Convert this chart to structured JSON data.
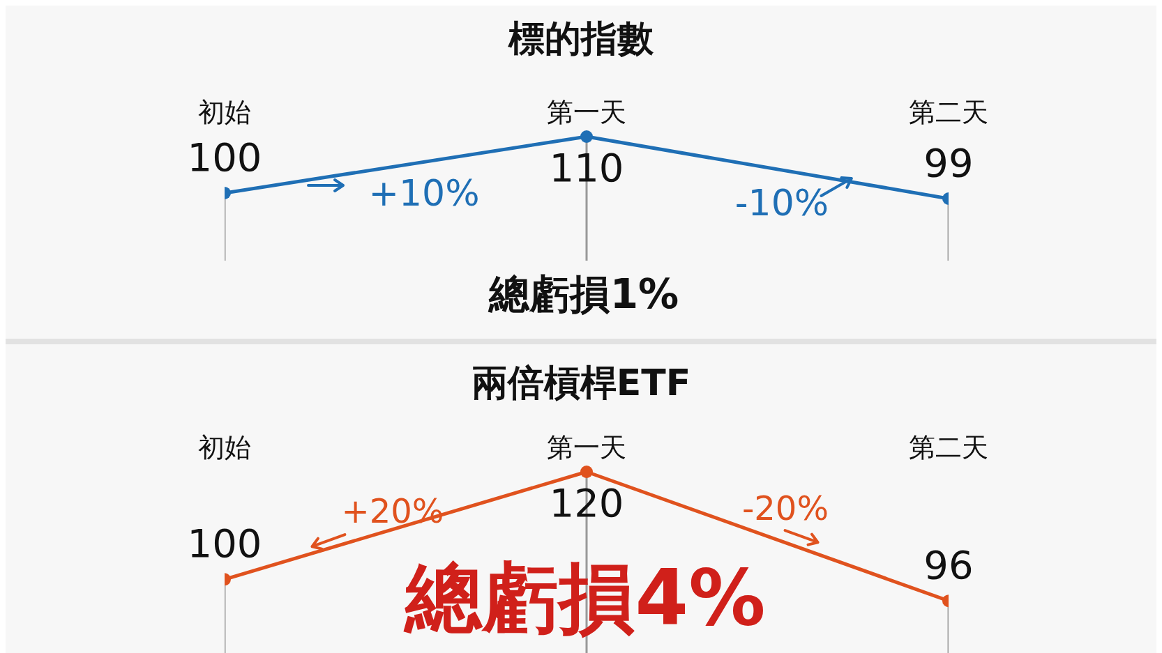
{
  "chart_data": [
    {
      "type": "line",
      "title": "標的指數",
      "categories": [
        "初始",
        "第一天",
        "第二天"
      ],
      "marker": "circle",
      "data_labels": true,
      "series": [
        {
          "color": "#1f6fb5",
          "values": [
            100,
            110,
            99
          ]
        }
      ],
      "annotations": [
        "+10%",
        "-10%",
        "總虧損1%"
      ]
    },
    {
      "type": "line",
      "title": "兩倍槓桿ETF",
      "categories": [
        "初始",
        "第一天",
        "第二天"
      ],
      "marker": "circle",
      "data_labels": true,
      "series": [
        {
          "color": "#e0521e",
          "values": [
            100,
            120,
            96
          ]
        }
      ],
      "annotations": [
        "+20%",
        "-20%",
        "總虧損4%"
      ]
    }
  ]
}
